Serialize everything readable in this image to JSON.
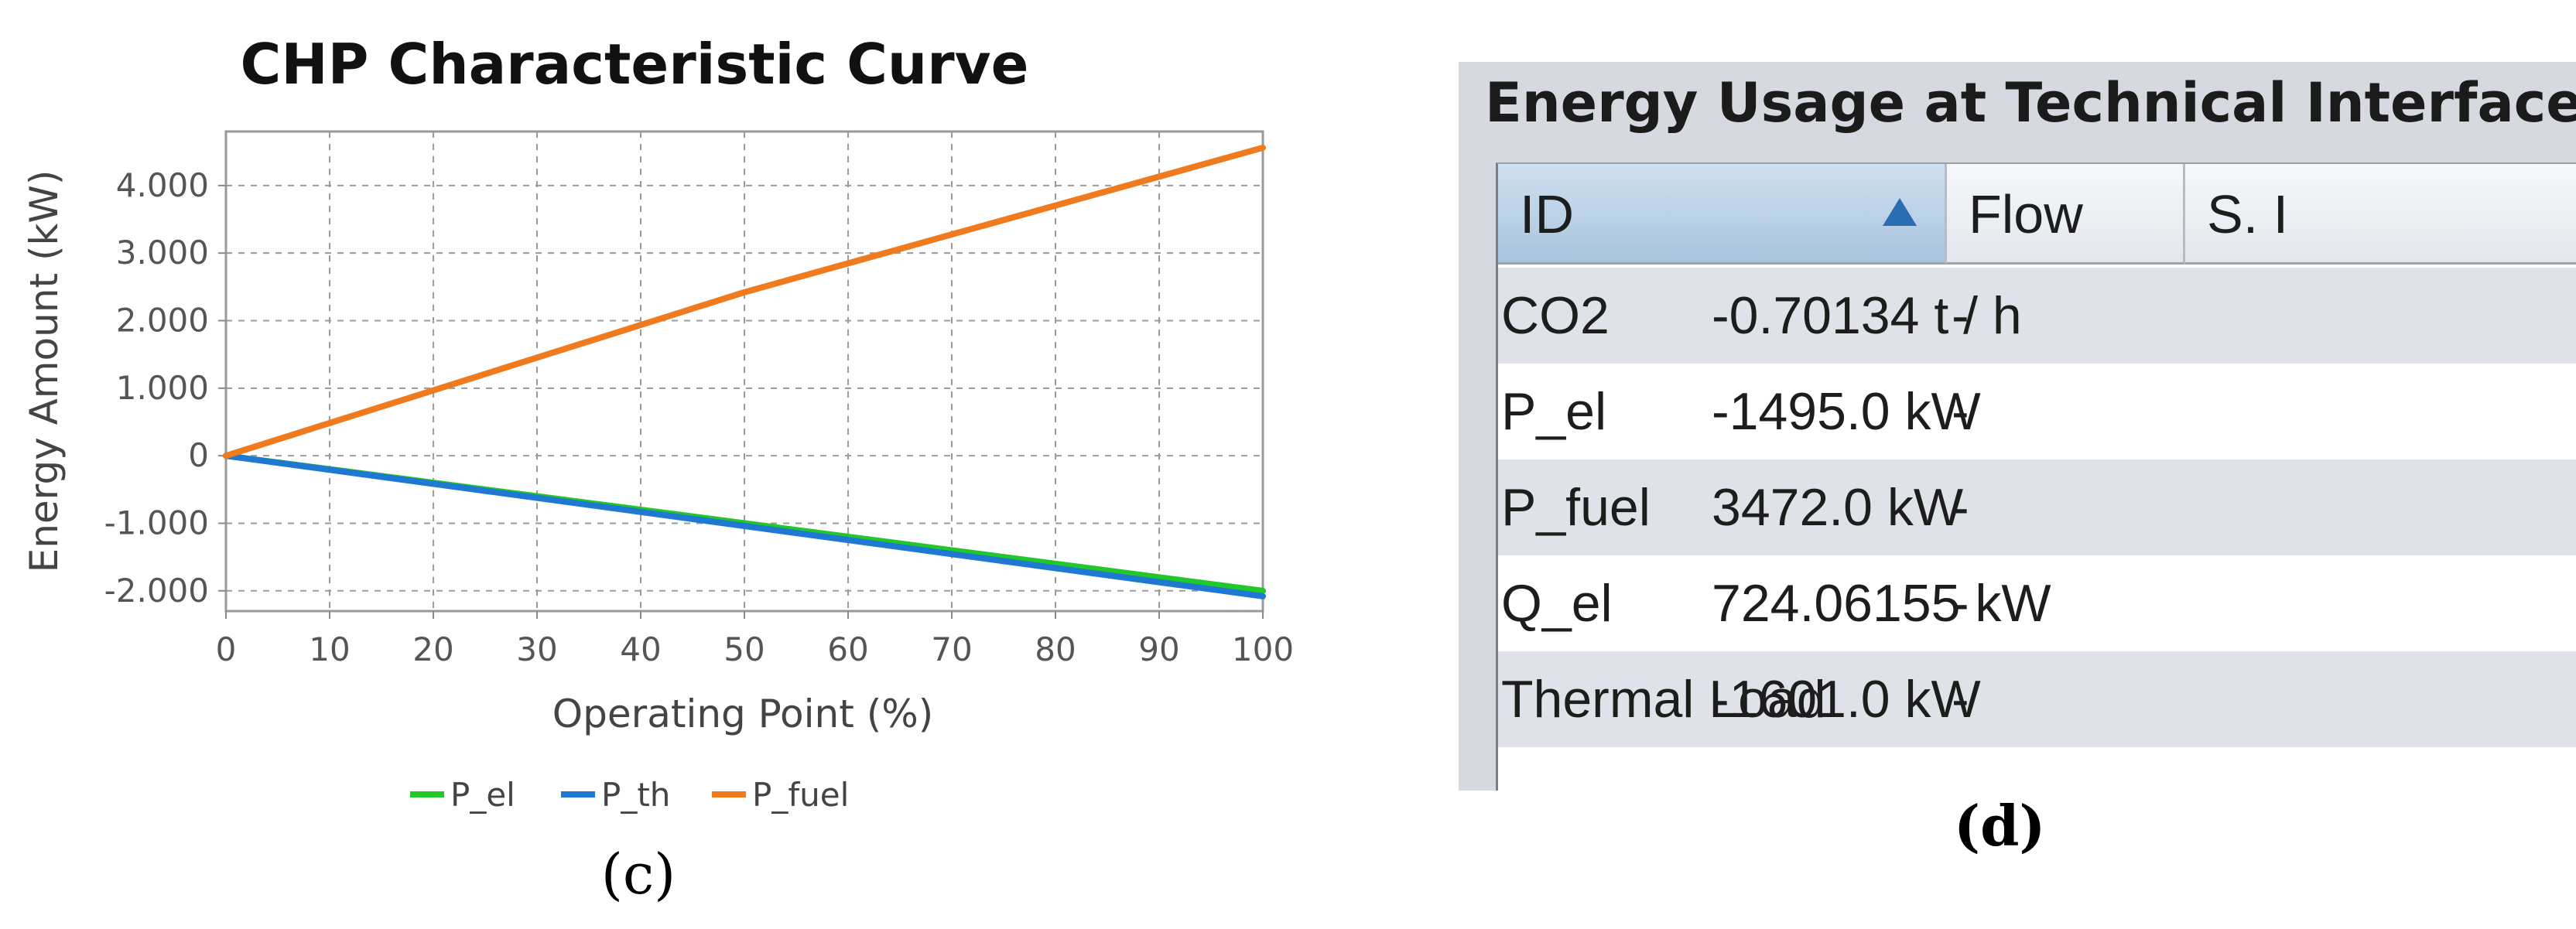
{
  "chart_panel": {
    "caption": "(c)",
    "chart_data": {
      "type": "line",
      "title": "CHP Characteristic Curve",
      "xlabel": "Operating Point (%)",
      "ylabel": "Energy Amount (kW)",
      "xlim": [
        0,
        100
      ],
      "ylim": [
        -2300,
        4800
      ],
      "xticks": [
        0,
        10,
        20,
        30,
        40,
        50,
        60,
        70,
        80,
        90,
        100
      ],
      "xtick_labels": [
        "0",
        "10",
        "20",
        "30",
        "40",
        "50",
        "60",
        "70",
        "80",
        "90",
        "100"
      ],
      "yticks": [
        -2000,
        -1000,
        0,
        1000,
        2000,
        3000,
        4000
      ],
      "ytick_labels": [
        "-2.000",
        "-1.000",
        "0",
        "1.000",
        "2.000",
        "3.000",
        "4.000"
      ],
      "grid": true,
      "legend_position": "bottom-center",
      "series": [
        {
          "name": "P_el",
          "color": "#22c82a",
          "x": [
            0,
            100
          ],
          "y": [
            0,
            -2000
          ]
        },
        {
          "name": "P_th",
          "color": "#1f78d1",
          "x": [
            0,
            100
          ],
          "y": [
            0,
            -2080
          ]
        },
        {
          "name": "P_fuel",
          "color": "#f07a1e",
          "x": [
            0,
            50,
            100
          ],
          "y": [
            0,
            2420,
            4560
          ]
        }
      ]
    }
  },
  "table_panel": {
    "title": "Energy Usage at Technical Interfaces",
    "caption": "(d)",
    "columns": [
      "ID",
      "Flow",
      "S. I"
    ],
    "sorted_column": "ID",
    "rows": [
      {
        "id": "CO2",
        "flow": "-0.70134 t / h",
        "s": "-"
      },
      {
        "id": "P_el",
        "flow": "-1495.0 kW",
        "s": "-"
      },
      {
        "id": "P_fuel",
        "flow": "3472.0 kW",
        "s": "-"
      },
      {
        "id": "Q_el",
        "flow": "724.06155 kW",
        "s": "-"
      },
      {
        "id": "Thermal Load",
        "flow": "-1601.0 kW",
        "s": "-"
      }
    ]
  }
}
